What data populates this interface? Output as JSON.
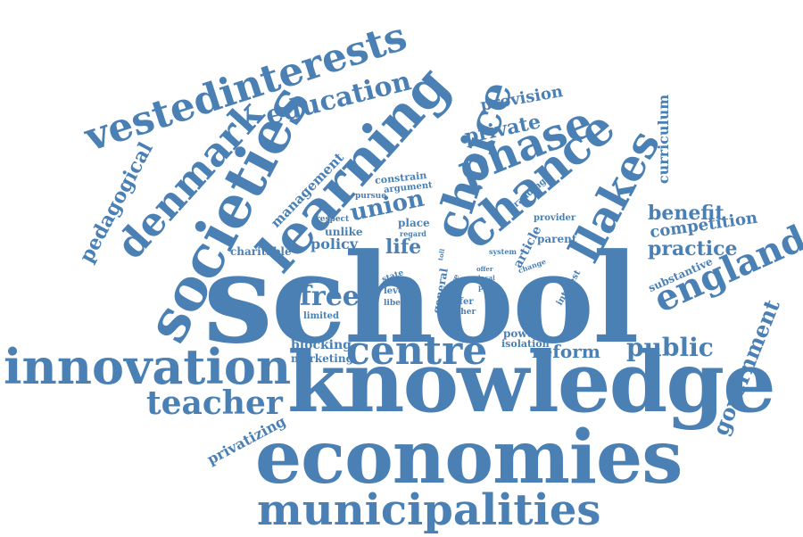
{
  "accent_color": "#4a80b4",
  "words": [
    "school",
    "knowledge",
    "economies",
    "innovation",
    "municipalities",
    "societies",
    "learning",
    "choice",
    "chance",
    "vestedinterests",
    "denmark",
    "phase",
    "llakes",
    "centre",
    "england",
    "teacher",
    "education",
    "union",
    "public",
    "pedagogical",
    "government",
    "private",
    "provision",
    "curriculum",
    "benefit",
    "practice",
    "competition",
    "free",
    "reform",
    "management",
    "life",
    "policy",
    "privatizing",
    "substantive",
    "blocking",
    "marketing",
    "charitable",
    "unlike",
    "place",
    "article",
    "parent",
    "power",
    "isolation",
    "general",
    "state",
    "level",
    "limited",
    "liberal",
    "differ",
    "pupil",
    "higher",
    "more",
    "interest",
    "constrain",
    "argument",
    "pursue",
    "respect",
    "regard",
    "branding",
    "provider",
    "system",
    "offer",
    "local",
    "change",
    "toll"
  ]
}
